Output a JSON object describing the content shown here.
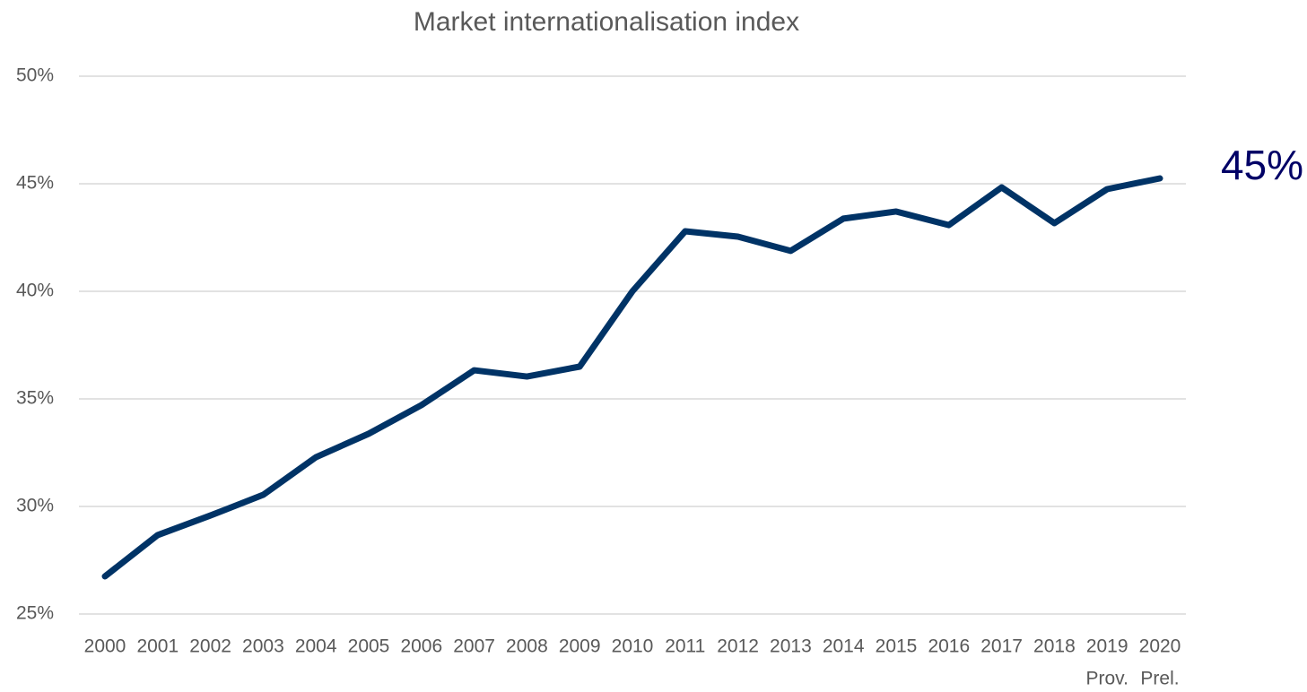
{
  "chart_data": {
    "type": "line",
    "title": "Market internationalisation index",
    "categories": [
      "2000",
      "2001",
      "2002",
      "2003",
      "2004",
      "2005",
      "2006",
      "2007",
      "2008",
      "2009",
      "2010",
      "2011",
      "2012",
      "2013",
      "2014",
      "2015",
      "2016",
      "2017",
      "2018",
      "2019",
      "2020"
    ],
    "category_notes": [
      null,
      null,
      null,
      null,
      null,
      null,
      null,
      null,
      null,
      null,
      null,
      null,
      null,
      null,
      null,
      null,
      null,
      null,
      null,
      "Prov.",
      "Prel."
    ],
    "series": [
      {
        "name": "Market internationalisation index",
        "color": "#003366",
        "values": [
          26.75,
          28.67,
          29.58,
          30.54,
          32.29,
          33.38,
          34.71,
          36.33,
          36.04,
          36.5,
          40.0,
          42.79,
          42.54,
          41.88,
          43.38,
          43.71,
          43.08,
          44.83,
          43.17,
          44.75,
          45.25
        ],
        "value_labels": [
          null,
          null,
          null,
          null,
          null,
          null,
          null,
          null,
          null,
          null,
          null,
          null,
          null,
          null,
          null,
          null,
          null,
          null,
          null,
          null,
          "45%"
        ]
      }
    ],
    "value_label_color": "#000066",
    "ylim": [
      25,
      50
    ],
    "yticks": [
      {
        "value": 25,
        "label": "25%"
      },
      {
        "value": 30,
        "label": "30%"
      },
      {
        "value": 35,
        "label": "35%"
      },
      {
        "value": 40,
        "label": "40%"
      },
      {
        "value": 45,
        "label": "45%"
      },
      {
        "value": 50,
        "label": "50%"
      }
    ],
    "grid": true
  }
}
